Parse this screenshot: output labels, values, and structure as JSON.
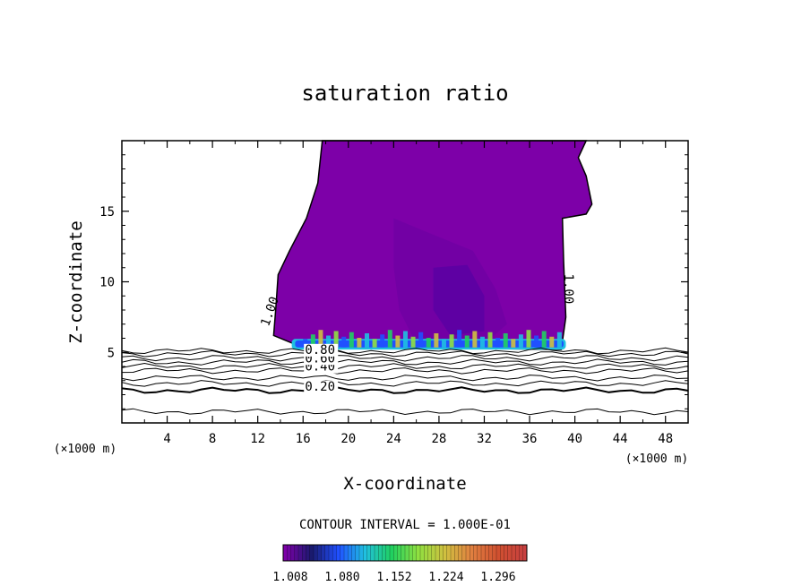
{
  "chart_data": {
    "type": "contour",
    "title": "saturation ratio",
    "xlabel": "X-coordinate",
    "ylabel": "Z-coordinate",
    "x_unit": "(×1000 m)",
    "xlim": [
      0,
      50
    ],
    "ylim": [
      0,
      20
    ],
    "x_ticks": [
      "4",
      "8",
      "12",
      "16",
      "20",
      "24",
      "28",
      "32",
      "36",
      "40",
      "44",
      "48"
    ],
    "y_ticks": [
      "5",
      "10",
      "15"
    ],
    "contour_interval": "CONTOUR INTERVAL = 1.000E-01",
    "contour_labels": [
      {
        "text": "0.20",
        "x": 17.5,
        "z": 2.3
      },
      {
        "text": "0.40",
        "x": 17.5,
        "z": 3.7
      },
      {
        "text": "0.60",
        "x": 17.5,
        "z": 4.3
      },
      {
        "text": "0.80",
        "x": 17.5,
        "z": 4.9
      },
      {
        "text": "1.00",
        "x": 13.4,
        "z": 7.8
      },
      {
        "text": "1.00",
        "x": 39.1,
        "z": 9.5
      }
    ],
    "contour_lines_z": [
      0.8,
      2.3,
      2.8,
      3.2,
      3.7,
      4.0,
      4.3,
      4.6,
      4.9,
      5.1
    ],
    "saturated_region": {
      "level": "1.00",
      "outline": [
        [
          17.7,
          20
        ],
        [
          17.3,
          17
        ],
        [
          16.3,
          14.5
        ],
        [
          14.8,
          12.2
        ],
        [
          13.8,
          10.5
        ],
        [
          13.6,
          8.2
        ],
        [
          13.4,
          6.2
        ],
        [
          15.2,
          5.6
        ],
        [
          20,
          5.5
        ],
        [
          30,
          5.3
        ],
        [
          38.8,
          5.2
        ],
        [
          39.2,
          7.5
        ],
        [
          39.0,
          11.5
        ],
        [
          38.9,
          14.5
        ],
        [
          41.0,
          14.8
        ],
        [
          41.5,
          15.5
        ],
        [
          41.0,
          17.5
        ],
        [
          40.3,
          18.8
        ],
        [
          41.0,
          20
        ]
      ]
    },
    "colorbar": {
      "tick_labels": [
        "1.008",
        "1.080",
        "1.152",
        "1.224",
        "1.296"
      ],
      "colors": [
        "#7d00a8",
        "#1a1a6e",
        "#2050ff",
        "#20c0e0",
        "#20d060",
        "#90e040",
        "#d0c040",
        "#e08040",
        "#d05030",
        "#c84040"
      ]
    }
  }
}
